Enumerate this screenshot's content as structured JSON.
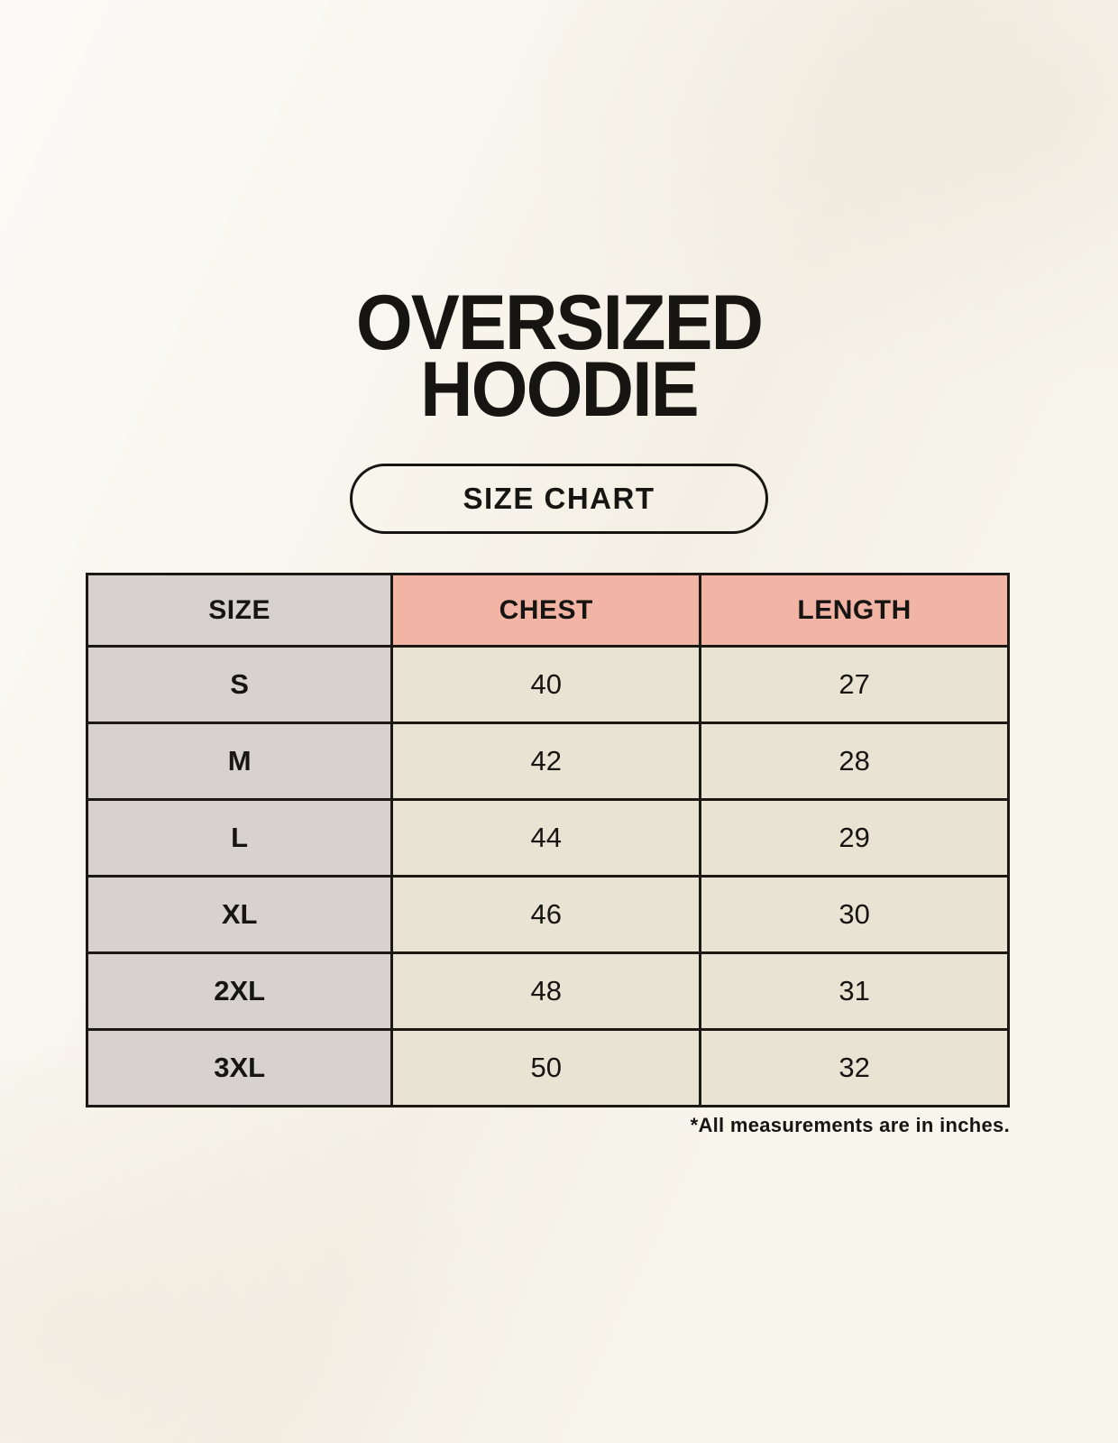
{
  "page": {
    "title_line1": "OVERSIZED",
    "title_line2": "HOODIE",
    "badge_label": "SIZE CHART",
    "footnote": "*All measurements are in inches."
  },
  "table": {
    "columns": [
      "SIZE",
      "CHEST",
      "LENGTH"
    ],
    "rows": [
      {
        "size": "S",
        "chest": "40",
        "length": "27"
      },
      {
        "size": "M",
        "chest": "42",
        "length": "28"
      },
      {
        "size": "L",
        "chest": "44",
        "length": "29"
      },
      {
        "size": "XL",
        "chest": "46",
        "length": "30"
      },
      {
        "size": "2XL",
        "chest": "48",
        "length": "31"
      },
      {
        "size": "3XL",
        "chest": "50",
        "length": "32"
      }
    ]
  },
  "colors": {
    "background": "#f8f5ed",
    "size_column_bg": "#d8d1d2",
    "header_accent_bg": "#f2b4a4",
    "data_cell_bg": "#e9e3d4",
    "border": "#1c1915",
    "text": "#171512"
  },
  "chart_data": {
    "type": "table",
    "title": "OVERSIZED HOODIE",
    "subtitle": "SIZE CHART",
    "columns": [
      "SIZE",
      "CHEST",
      "LENGTH"
    ],
    "rows": [
      [
        "S",
        40,
        27
      ],
      [
        "M",
        42,
        28
      ],
      [
        "L",
        44,
        29
      ],
      [
        "XL",
        46,
        30
      ],
      [
        "2XL",
        48,
        31
      ],
      [
        "3XL",
        50,
        32
      ]
    ],
    "note": "*All measurements are in inches.",
    "units": "inches"
  }
}
